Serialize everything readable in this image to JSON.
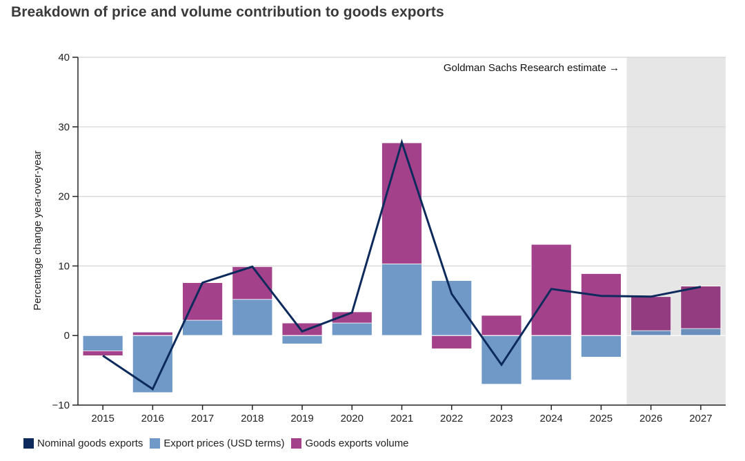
{
  "chart_data": {
    "type": "bar",
    "title": "Breakdown of price and volume contribution to goods exports",
    "xlabel": "",
    "ylabel": "Percentage change year-over-year",
    "ylim": [
      -10,
      40
    ],
    "yticks": [
      -10,
      0,
      10,
      20,
      30,
      40
    ],
    "categories": [
      "2015",
      "2016",
      "2017",
      "2018",
      "2019",
      "2020",
      "2021",
      "2022",
      "2023",
      "2024",
      "2025",
      "2026",
      "2027"
    ],
    "series": [
      {
        "name": "Export prices (USD terms)",
        "kind": "bar",
        "values": [
          -2.2,
          -8.2,
          2.2,
          5.2,
          -1.2,
          1.8,
          10.3,
          7.9,
          -7.0,
          -6.4,
          -3.1,
          0.7,
          1.0
        ]
      },
      {
        "name": "Goods exports volume",
        "kind": "bar",
        "values": [
          -0.7,
          0.5,
          5.4,
          4.7,
          1.8,
          1.6,
          17.4,
          -1.9,
          2.9,
          13.1,
          8.9,
          4.9,
          6.1
        ]
      },
      {
        "name": "Nominal goods exports",
        "kind": "line",
        "values": [
          -2.9,
          -7.7,
          7.6,
          9.9,
          0.6,
          3.3,
          27.8,
          6.0,
          -4.2,
          6.7,
          5.7,
          5.6,
          7.0
        ]
      }
    ],
    "estimate_label": "Goldman Sachs Research estimate →",
    "estimate_start": "2026",
    "legend": [
      "Nominal goods exports",
      "Export prices (USD terms)",
      "Goods exports volume"
    ]
  },
  "colors": {
    "line": "#0d2a5c",
    "prices": "#7099c8",
    "volume": "#a3418a",
    "prices_estimate": "#6a8fbb",
    "volume_estimate": "#933d80",
    "shade": "#e6e6e6",
    "grid": "#d4d4d4",
    "axis": "#222222"
  }
}
